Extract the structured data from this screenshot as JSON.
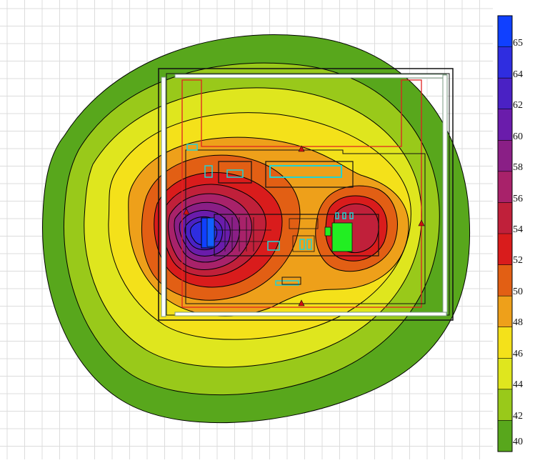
{
  "colors": {
    "background": "#ffffff",
    "grid": "#dcdcdc",
    "contour_line": "#000000",
    "boundary": "#e02020",
    "equipment": "#111111",
    "highlight": "#22d3d3",
    "source_green": "#22ee22",
    "source_blue": "#1060ff",
    "marker": "#d01010",
    "wall": "#7a9a80"
  },
  "contour_bands": [
    {
      "value": 40,
      "color": "#58a71c"
    },
    {
      "value": 42,
      "color": "#99c91a"
    },
    {
      "value": 44,
      "color": "#dfe61e"
    },
    {
      "value": 46,
      "color": "#f4e11a"
    },
    {
      "value": 48,
      "color": "#eea01a"
    },
    {
      "value": 50,
      "color": "#e25f14"
    },
    {
      "value": 52,
      "color": "#d91c1c"
    },
    {
      "value": 54,
      "color": "#c0203a"
    },
    {
      "value": 56,
      "color": "#a8226a"
    },
    {
      "value": 58,
      "color": "#8a1f86"
    },
    {
      "value": 60,
      "color": "#6a1cab"
    },
    {
      "value": 62,
      "color": "#4a21c4"
    },
    {
      "value": 64,
      "color": "#2f2de0"
    },
    {
      "value": 65,
      "color": "#1040ff"
    }
  ],
  "legend": {
    "labels": [
      "65",
      "64",
      "62",
      "60",
      "58",
      "56",
      "54",
      "52",
      "50",
      "48",
      "46",
      "44",
      "42",
      "40"
    ]
  }
}
